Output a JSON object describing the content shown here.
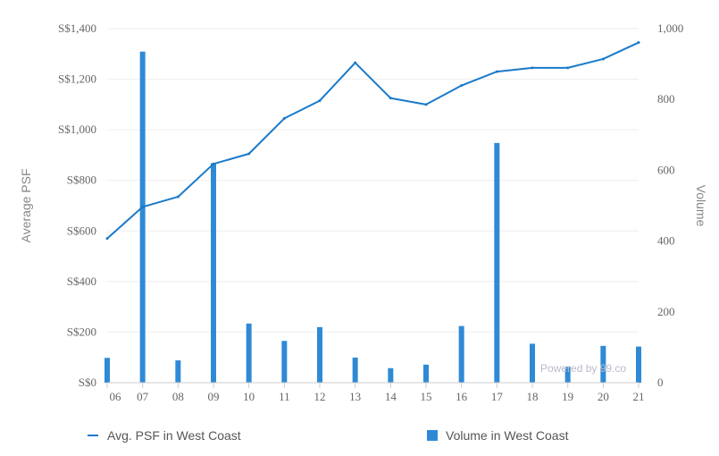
{
  "chart_data": {
    "type": "bar+line",
    "title": "",
    "x_categories": [
      "06",
      "07",
      "08",
      "09",
      "10",
      "11",
      "12",
      "13",
      "14",
      "15",
      "16",
      "17",
      "18",
      "19",
      "20",
      "21"
    ],
    "y_left": {
      "label": "Average PSF",
      "ylim": [
        0,
        1400
      ],
      "ticks": [
        "S$0",
        "S$200",
        "S$400",
        "S$600",
        "S$800",
        "S$1,000",
        "S$1,200",
        "S$1,400"
      ]
    },
    "y_right": {
      "label": "Volume",
      "ylim": [
        0,
        1000
      ],
      "ticks": [
        "0",
        "200",
        "400",
        "600",
        "800",
        "1,000"
      ]
    },
    "series": [
      {
        "name": "Avg. PSF in West Coast",
        "type": "line",
        "axis": "left",
        "color": "#1a7ac9",
        "values": [
          570,
          695,
          735,
          865,
          905,
          1045,
          1115,
          1265,
          1125,
          1100,
          1175,
          1230,
          1245,
          1245,
          1280,
          1345
        ]
      },
      {
        "name": "Volume in West Coast",
        "type": "bar",
        "axis": "right",
        "color": "#2f8ad6",
        "values": [
          70,
          935,
          63,
          620,
          167,
          118,
          157,
          71,
          41,
          51,
          160,
          677,
          110,
          45,
          104,
          102
        ]
      }
    ],
    "grid": true,
    "legend_placement": "bottom",
    "watermark": "Powered by 99.co"
  }
}
